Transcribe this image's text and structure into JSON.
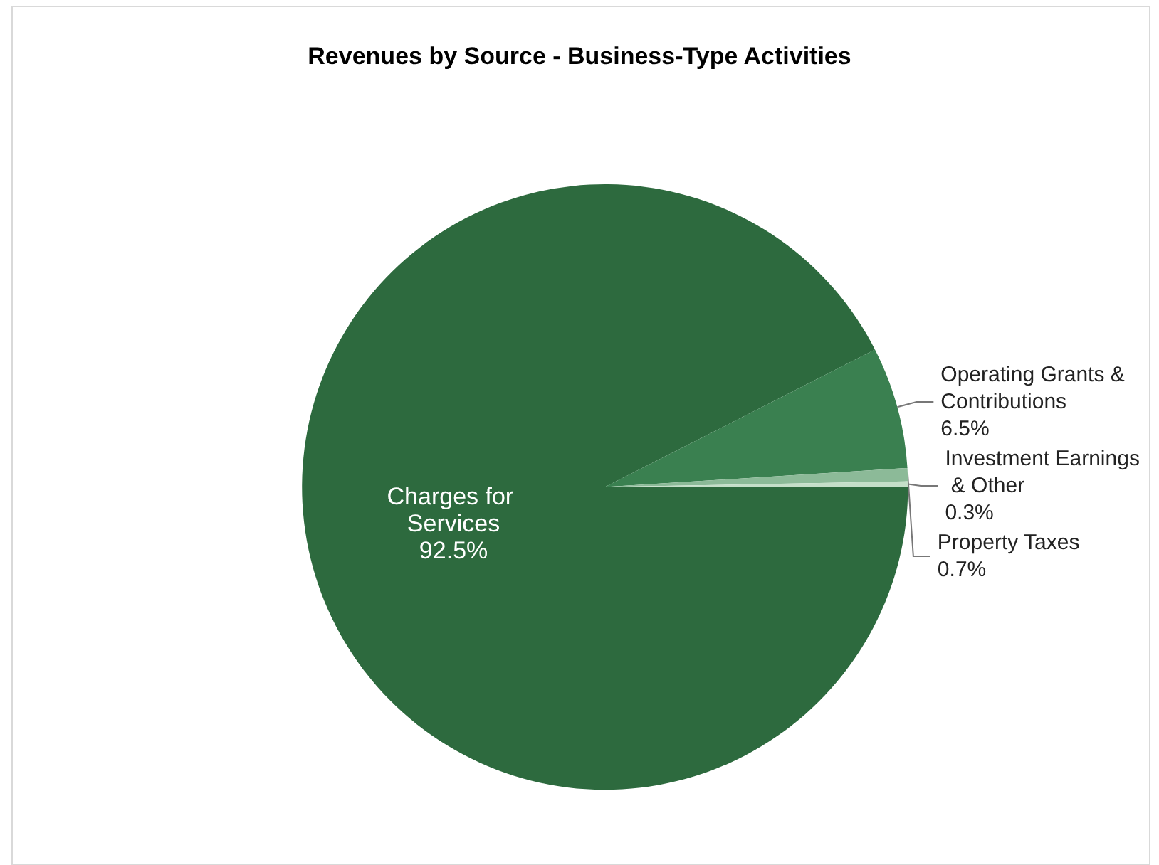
{
  "chart_data": {
    "type": "pie",
    "title": "Revenues by Source - Business-Type Activities",
    "categories": [
      "Charges for Services",
      "Operating Grants & Contributions",
      "Property Taxes",
      "Investment Earnings & Other"
    ],
    "values": [
      92.5,
      6.5,
      0.7,
      0.3
    ],
    "value_labels": [
      "92.5%",
      "6.5%",
      "0.7%",
      "0.3%"
    ],
    "colors": [
      "#2d6a3e",
      "#3a8050",
      "#8cba98",
      "#c5dfc9"
    ],
    "legend": false
  }
}
